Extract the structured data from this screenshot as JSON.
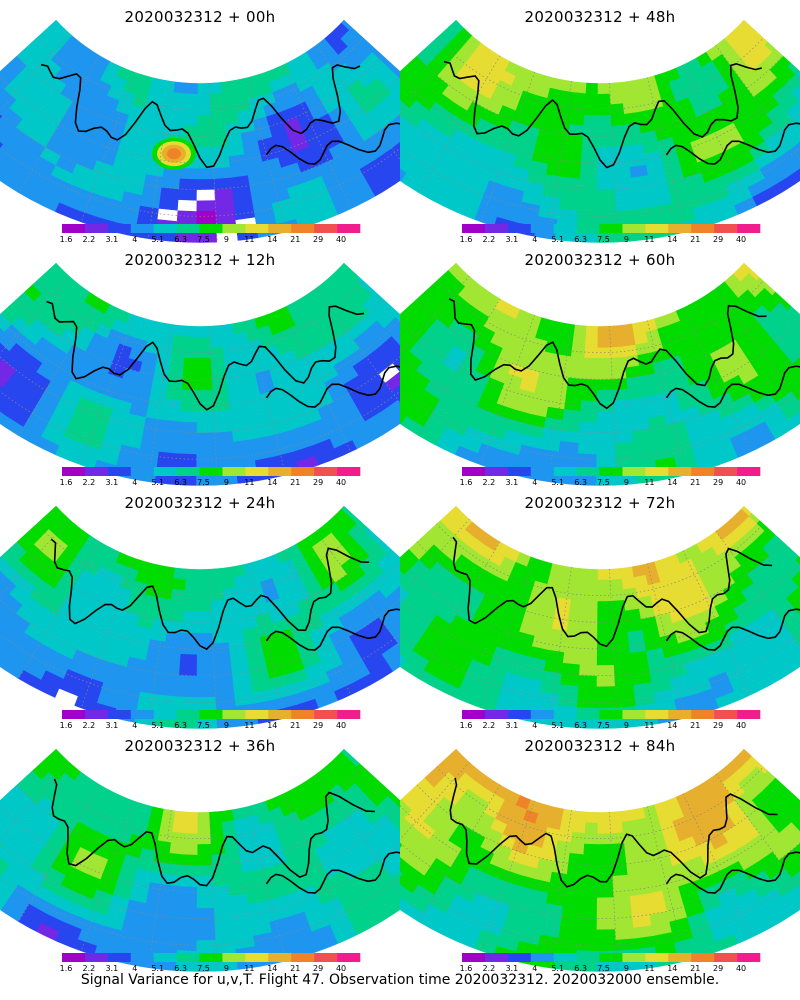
{
  "chart_data": {
    "type": "heatmap",
    "caption": "Signal Variance for u,v,T. Flight 47. Observation time 2020032312. 2020032000 ensemble.",
    "colorbar": {
      "levels": [
        "1.6",
        "2.2",
        "3.1",
        "4",
        "5.1",
        "6.3",
        "7.5",
        "9",
        "11",
        "14",
        "21",
        "29",
        "40"
      ],
      "colors": [
        "#a000c8",
        "#7328e6",
        "#2846f0",
        "#1e96f0",
        "#00c8c8",
        "#00d28c",
        "#00dc00",
        "#a0e632",
        "#e6dc32",
        "#e6af2d",
        "#f08228",
        "#f05050",
        "#f01e8c"
      ]
    },
    "panels": [
      {
        "title": "2020032312 + 00h",
        "intensity": 0.15,
        "hotspots": [
          {
            "lon": -135,
            "lat": 48,
            "value": 21
          }
        ]
      },
      {
        "title": "2020032312 + 48h",
        "intensity": 0.55
      },
      {
        "title": "2020032312 + 12h",
        "intensity": 0.25
      },
      {
        "title": "2020032312 + 60h",
        "intensity": 0.62
      },
      {
        "title": "2020032312 + 24h",
        "intensity": 0.33
      },
      {
        "title": "2020032312 + 72h",
        "intensity": 0.7
      },
      {
        "title": "2020032312 + 36h",
        "intensity": 0.42
      },
      {
        "title": "2020032312 + 84h",
        "intensity": 0.82
      }
    ]
  }
}
